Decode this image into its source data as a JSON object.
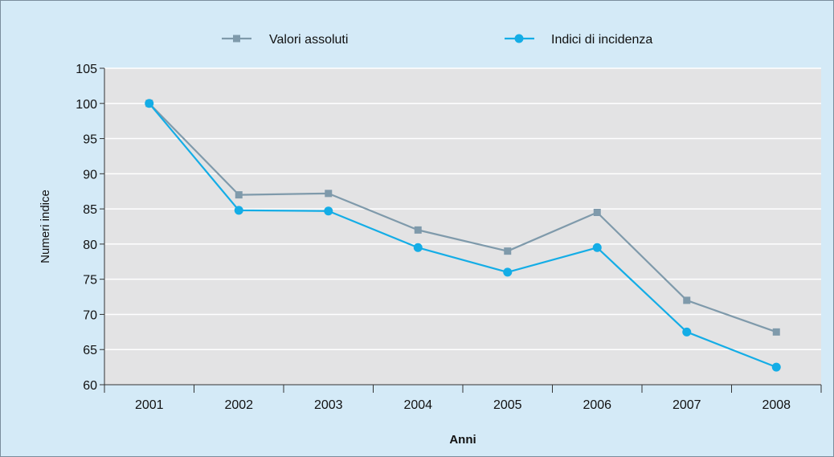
{
  "chart_data": {
    "type": "line",
    "title": "",
    "xlabel": "Anni",
    "ylabel": "Numeri indice",
    "categories": [
      "2001",
      "2002",
      "2003",
      "2004",
      "2005",
      "2006",
      "2007",
      "2008"
    ],
    "yticks": [
      "60",
      "65",
      "70",
      "75",
      "80",
      "85",
      "90",
      "95",
      "100",
      "105"
    ],
    "ylim": [
      60,
      105
    ],
    "grid": true,
    "legend_position": "top",
    "series": [
      {
        "name": "Valori assoluti",
        "values": [
          100,
          87,
          87.2,
          82,
          79,
          84.5,
          72,
          67.5
        ],
        "color": "#7f9aab",
        "marker": "square"
      },
      {
        "name": "Indici di incidenza",
        "values": [
          100,
          84.8,
          84.7,
          79.5,
          76,
          79.5,
          67.5,
          62.5
        ],
        "color": "#14ade6",
        "marker": "circle"
      }
    ]
  },
  "colors": {
    "background": "#d4eaf7",
    "plot_area": "#e3e3e4",
    "gridline": "#ffffff"
  }
}
